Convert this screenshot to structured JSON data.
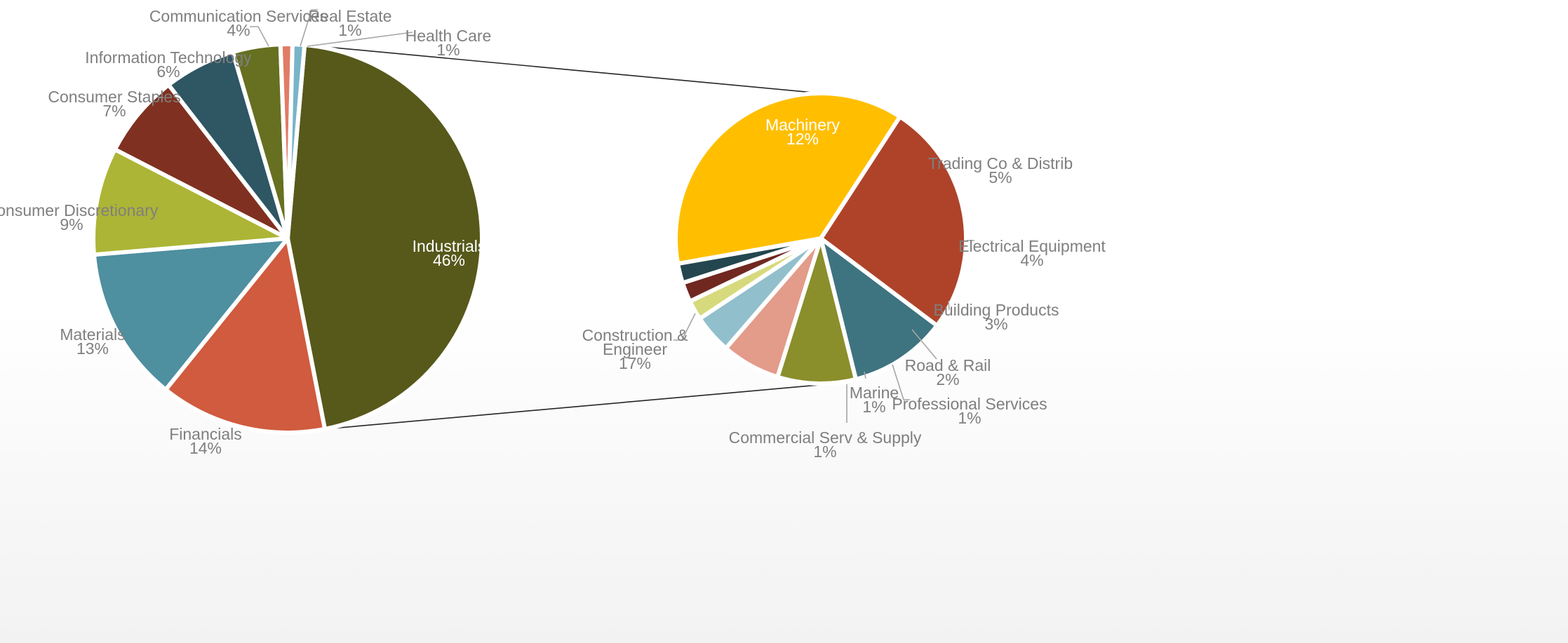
{
  "chart_data": [
    {
      "type": "pie",
      "title": "",
      "slices": [
        {
          "label": "Industrials",
          "value": 46,
          "display": "46%",
          "color": "#56591a"
        },
        {
          "label": "Financials",
          "value": 14,
          "display": "14%",
          "color": "#d05b3e"
        },
        {
          "label": "Materials",
          "value": 13,
          "display": "13%",
          "color": "#4e8fa0"
        },
        {
          "label": "Consumer Discretionary",
          "value": 9,
          "display": "9%",
          "color": "#acb535"
        },
        {
          "label": "Consumer Staples",
          "value": 7,
          "display": "7%",
          "color": "#803020"
        },
        {
          "label": "Information Technology",
          "value": 6,
          "display": "6%",
          "color": "#2e5663"
        },
        {
          "label": "Communication Services",
          "value": 4,
          "display": "4%",
          "color": "#667020"
        },
        {
          "label": "Real Estate",
          "value": 1,
          "display": "1%",
          "color": "#e07c66"
        },
        {
          "label": "Health Care",
          "value": 1,
          "display": "1%",
          "color": "#78b4c8"
        }
      ]
    },
    {
      "type": "pie",
      "title": "",
      "breakdown_of": "Industrials",
      "slices": [
        {
          "label": "Machinery",
          "value": 12,
          "display": "12%",
          "color": "#ae432a"
        },
        {
          "label": "Trading Co & Distrib",
          "value": 5,
          "display": "5%",
          "color": "#3e7380"
        },
        {
          "label": "Electrical Equipment",
          "value": 4,
          "display": "4%",
          "color": "#8a8e2b"
        },
        {
          "label": "Building Products",
          "value": 3,
          "display": "3%",
          "color": "#e39b8a"
        },
        {
          "label": "Road & Rail",
          "value": 2,
          "display": "2%",
          "color": "#92bfcc"
        },
        {
          "label": "Professional Services",
          "value": 1,
          "display": "1%",
          "color": "#d6da7c"
        },
        {
          "label": "Marine",
          "value": 1,
          "display": "1%",
          "color": "#702820"
        },
        {
          "label": "Commercial Serv & Supply",
          "value": 1,
          "display": "1%",
          "color": "#24464f"
        },
        {
          "label": "Construction & Engineer",
          "value": 17,
          "display": "17%",
          "color": "#ffbf00"
        }
      ]
    }
  ]
}
